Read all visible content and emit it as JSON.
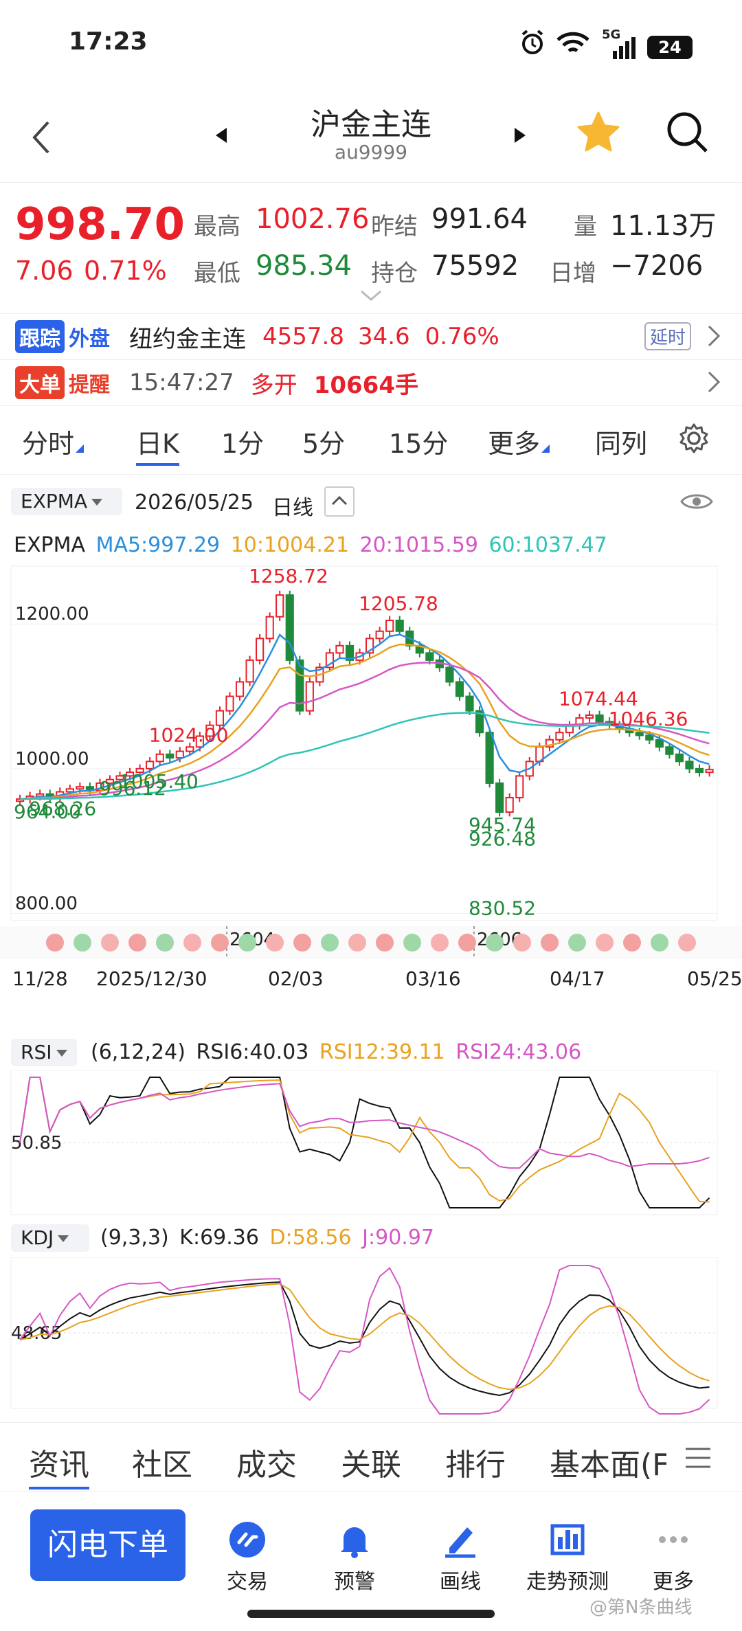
{
  "status_bar": {
    "time": "17:23",
    "network": "5G",
    "battery": "24"
  },
  "nav": {
    "title": "沪金主连",
    "subtitle": "au9999"
  },
  "quote": {
    "price": "998.70",
    "change": "7.06",
    "change_pct": "0.71%",
    "high_label": "最高",
    "high": "1002.76",
    "low_label": "最低",
    "low": "985.34",
    "prev_settle_label": "昨结",
    "prev_settle": "991.64",
    "oi_label": "持仓",
    "oi": "75592",
    "vol_label": "量",
    "vol": "11.13万",
    "daily_inc_label": "日增",
    "daily_inc": "−7206"
  },
  "foreign": {
    "badge1": "跟踪",
    "badge2": "外盘",
    "name": "纽约金主连",
    "price": "4557.8",
    "chg": "34.6",
    "pct": "0.76%",
    "delay": "延时"
  },
  "bigorder": {
    "badge1": "大单",
    "badge2": "提醒",
    "time": "15:47:27",
    "action": "多开",
    "size": "10664手"
  },
  "period_tabs": [
    "分时",
    "日K",
    "1分",
    "5分",
    "15分",
    "更多",
    "同列"
  ],
  "chart_header": {
    "indicator": "EXPMA",
    "date": "2026/05/25",
    "mode": "日线"
  },
  "expma_legend": {
    "name": "EXPMA",
    "ma5": "MA5:997.29",
    "ma10": "10:1004.21",
    "ma20": "20:1015.59",
    "ma60": "60:1037.47"
  },
  "rsi_legend": {
    "name": "RSI",
    "params": "(6,12,24)",
    "r6": "RSI6:40.03",
    "r12": "RSI12:39.11",
    "r24": "RSI24:43.06",
    "ref": "50.85"
  },
  "kdj_legend": {
    "name": "KDJ",
    "params": "(9,3,3)",
    "k": "K:69.36",
    "d": "D:58.56",
    "j": "J:90.97",
    "ref": "48.65"
  },
  "colors": {
    "up": "#e8202a",
    "down": "#1f8a3a",
    "ma5": "#2a8fdc",
    "ma10": "#e8a21e",
    "ma20": "#d656c6",
    "ma60": "#2ec4b6",
    "accent": "#2a62e8"
  },
  "chart_data": {
    "type": "line",
    "title": "",
    "y_ticks": [
      "1200.00",
      "1000.00",
      "800.00"
    ],
    "x_ticks": [
      "11/28",
      "2025/12/30",
      "02/03",
      "03/16",
      "04/17",
      "05/25"
    ],
    "contract_marks": [
      "2604",
      "2606"
    ],
    "annotations": [
      {
        "label": "1258.72",
        "kind": "high"
      },
      {
        "label": "1205.78",
        "kind": "high"
      },
      {
        "label": "1024.00",
        "kind": "high"
      },
      {
        "label": "1074.44",
        "kind": "high"
      },
      {
        "label": "1046.36",
        "kind": "high"
      },
      {
        "label": "968.26",
        "kind": "low"
      },
      {
        "label": "945.74",
        "kind": "low"
      },
      {
        "label": "964.00",
        "kind": "low"
      },
      {
        "label": "1005.40",
        "kind": "low"
      },
      {
        "label": "926.48",
        "kind": "low"
      },
      {
        "label": "996.12",
        "kind": "low"
      },
      {
        "label": "830.52",
        "kind": "low"
      }
    ],
    "ylim": [
      790,
      1280
    ],
    "close_series": [
      958,
      962,
      965,
      960,
      968,
      972,
      975,
      970,
      980,
      985,
      990,
      995,
      1000,
      1010,
      1020,
      1015,
      1024,
      1030,
      1045,
      1060,
      1080,
      1100,
      1120,
      1150,
      1180,
      1210,
      1240,
      1150,
      1080,
      1120,
      1140,
      1160,
      1170,
      1150,
      1160,
      1180,
      1190,
      1205,
      1190,
      1170,
      1160,
      1150,
      1140,
      1120,
      1100,
      1080,
      1050,
      980,
      940,
      960,
      990,
      1010,
      1030,
      1040,
      1050,
      1060,
      1070,
      1074,
      1065,
      1060,
      1055,
      1050,
      1046,
      1040,
      1030,
      1020,
      1010,
      1000,
      995,
      998.7
    ]
  },
  "bottom_tabs": [
    "资讯",
    "社区",
    "成交",
    "关联",
    "排行",
    "基本面(F"
  ],
  "actions": {
    "primary": "闪电下单",
    "trade": "交易",
    "alert": "预警",
    "draw": "画线",
    "forecast": "走势预测",
    "more": "更多"
  },
  "watermark": "@第N条曲线"
}
